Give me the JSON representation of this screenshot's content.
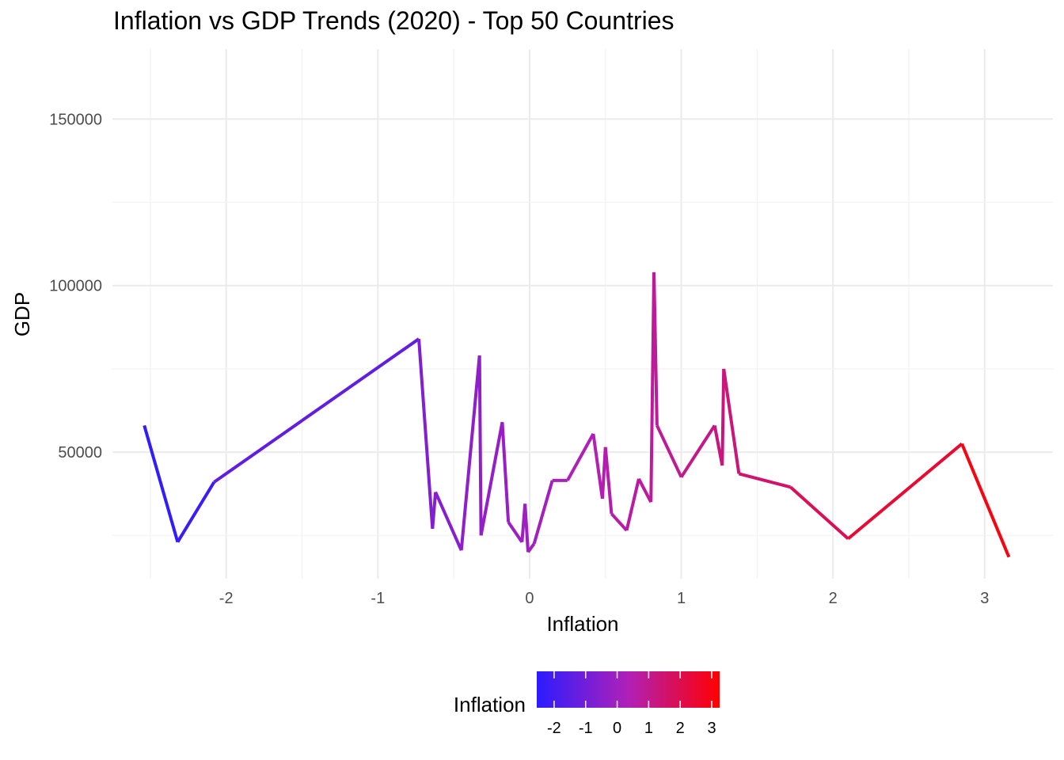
{
  "chart_data": {
    "type": "line",
    "title": "Inflation vs GDP Trends (2020) - Top 50 Countries",
    "xlabel": "Inflation",
    "ylabel": "GDP",
    "xlim": [
      -2.75,
      3.45
    ],
    "ylim": [
      12000,
      171000
    ],
    "x_ticks": [
      -2,
      -1,
      0,
      1,
      2,
      3
    ],
    "x_tick_labels": [
      "-2",
      "-1",
      "0",
      "1",
      "2",
      "3"
    ],
    "y_ticks": [
      50000,
      100000,
      150000
    ],
    "y_tick_labels": [
      "50000",
      "100000",
      "150000"
    ],
    "grid": true,
    "color_scale": {
      "title": "Inflation",
      "low_color": "#2b1cff",
      "mid_color": "#b020b8",
      "high_color": "#ff0000",
      "limits": [
        -2.55,
        3.25
      ],
      "ticks": [
        -2,
        -1,
        0,
        1,
        2,
        3
      ],
      "tick_labels": [
        "-2",
        "-1",
        "0",
        "1",
        "2",
        "3"
      ],
      "position": "bottom"
    },
    "x": [
      -2.54,
      -2.32,
      -2.08,
      -0.73,
      -0.64,
      -0.62,
      -0.45,
      -0.33,
      -0.32,
      -0.18,
      -0.14,
      -0.05,
      -0.03,
      -0.01,
      0.03,
      0.15,
      0.25,
      0.42,
      0.48,
      0.5,
      0.54,
      0.64,
      0.72,
      0.8,
      0.82,
      0.84,
      1.0,
      1.22,
      1.27,
      1.28,
      1.38,
      1.72,
      2.1,
      2.85,
      3.16
    ],
    "y": [
      58000,
      23000,
      41000,
      84000,
      27000,
      38000,
      20500,
      79000,
      25000,
      59000,
      29000,
      23000,
      34500,
      20000,
      22500,
      41500,
      41500,
      55500,
      36000,
      51500,
      31500,
      26500,
      42000,
      35000,
      104000,
      58000,
      42500,
      58000,
      46000,
      75000,
      43500,
      39500,
      24000,
      52500,
      18500
    ]
  }
}
